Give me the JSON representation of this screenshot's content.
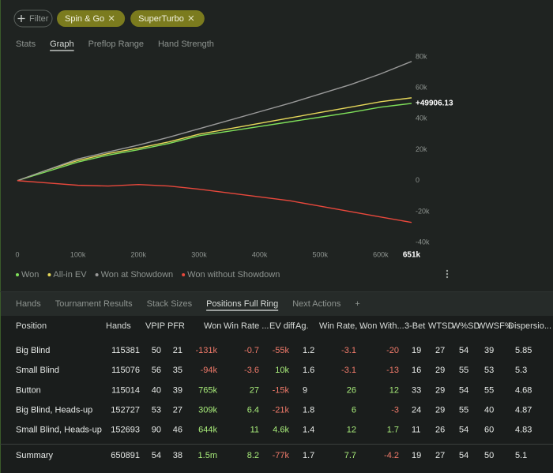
{
  "filter_bar": {
    "filter_button": "Filter",
    "chips": [
      "Spin & Go",
      "SuperTurbo"
    ]
  },
  "top_tabs": {
    "items": [
      "Stats",
      "Graph",
      "Preflop Range",
      "Hand Strength"
    ],
    "active": 1
  },
  "chart_data": {
    "type": "line",
    "x": [
      0,
      50000,
      100000,
      150000,
      200000,
      250000,
      300000,
      350000,
      400000,
      450000,
      500000,
      550000,
      600000,
      651000
    ],
    "series": [
      {
        "name": "Won",
        "color": "#7fe05a",
        "values": [
          0,
          6000,
          12000,
          16500,
          20000,
          24000,
          29000,
          32000,
          35000,
          38000,
          41000,
          44000,
          47500,
          49906.13
        ]
      },
      {
        "name": "All-in EV",
        "color": "#e6d85a",
        "values": [
          0,
          7000,
          13000,
          17500,
          21000,
          25000,
          30000,
          33500,
          37000,
          40500,
          44000,
          47500,
          51000,
          53500
        ]
      },
      {
        "name": "Won at Showdown",
        "color": "#9a9a9a",
        "values": [
          0,
          7000,
          14000,
          18500,
          23000,
          28000,
          33500,
          39000,
          44500,
          50000,
          56000,
          62000,
          69000,
          77000
        ]
      },
      {
        "name": "Won without Showdown",
        "color": "#e8483c",
        "values": [
          0,
          -1500,
          -3000,
          -3500,
          -2500,
          -3500,
          -5500,
          -8000,
          -10500,
          -13000,
          -16500,
          -20000,
          -23500,
          -27000
        ]
      }
    ],
    "xlim": [
      0,
      651000
    ],
    "ylim": [
      -44000,
      82000
    ],
    "xticks": [
      {
        "value": 0,
        "label": "0"
      },
      {
        "value": 100000,
        "label": "100k"
      },
      {
        "value": 200000,
        "label": "200k"
      },
      {
        "value": 300000,
        "label": "300k"
      },
      {
        "value": 400000,
        "label": "400k"
      },
      {
        "value": 500000,
        "label": "500k"
      },
      {
        "value": 600000,
        "label": "600k"
      },
      {
        "value": 651000,
        "label": "651k"
      }
    ],
    "yticks": [
      {
        "value": -40000,
        "label": "-40k"
      },
      {
        "value": -20000,
        "label": "-20k"
      },
      {
        "value": 0,
        "label": "0"
      },
      {
        "value": 20000,
        "label": "20k"
      },
      {
        "value": 40000,
        "label": "40k"
      },
      {
        "value": 60000,
        "label": "60k"
      },
      {
        "value": 80000,
        "label": "80k"
      }
    ],
    "annotation": "+49906.13",
    "grid": false,
    "legend": "bottom-left"
  },
  "bottom_tabs": {
    "items": [
      "Hands",
      "Tournament Results",
      "Stack Sizes",
      "Positions Full Ring",
      "Next Actions",
      "+"
    ],
    "active": 3
  },
  "table": {
    "columns": [
      "Position",
      "Hands",
      "VPIP",
      "PFR",
      "Won",
      "Win Rate ...",
      "EV diff.",
      "Ag.",
      "Win Rate, ...",
      "Won With...",
      "3-Bet",
      "WTSD",
      "W%SD",
      "WWSF%",
      "Dispersio..."
    ],
    "rows": [
      [
        "Big Blind",
        "115381",
        "50",
        "21",
        "-131k",
        "-0.7",
        "-55k",
        "1.2",
        "-3.1",
        "-20",
        "19",
        "27",
        "54",
        "39",
        "5.85"
      ],
      [
        "Small Blind",
        "115076",
        "56",
        "35",
        "-94k",
        "-3.6",
        "10k",
        "1.6",
        "-3.1",
        "-13",
        "16",
        "29",
        "55",
        "53",
        "5.3"
      ],
      [
        "Button",
        "115014",
        "40",
        "39",
        "765k",
        "27",
        "-15k",
        "9",
        "26",
        "12",
        "33",
        "29",
        "54",
        "55",
        "4.68"
      ],
      [
        "Big Blind, Heads-up",
        "152727",
        "53",
        "27",
        "309k",
        "6.4",
        "-21k",
        "1.8",
        "6",
        "-3",
        "24",
        "29",
        "55",
        "40",
        "4.87"
      ],
      [
        "Small Blind, Heads-up",
        "152693",
        "90",
        "46",
        "644k",
        "11",
        "4.6k",
        "1.4",
        "12",
        "1.7",
        "11",
        "26",
        "54",
        "60",
        "4.83"
      ]
    ],
    "summary": [
      "Summary",
      "650891",
      "54",
      "38",
      "1.5m",
      "8.2",
      "-77k",
      "1.7",
      "7.7",
      "-4.2",
      "19",
      "27",
      "54",
      "50",
      "5.1"
    ]
  }
}
